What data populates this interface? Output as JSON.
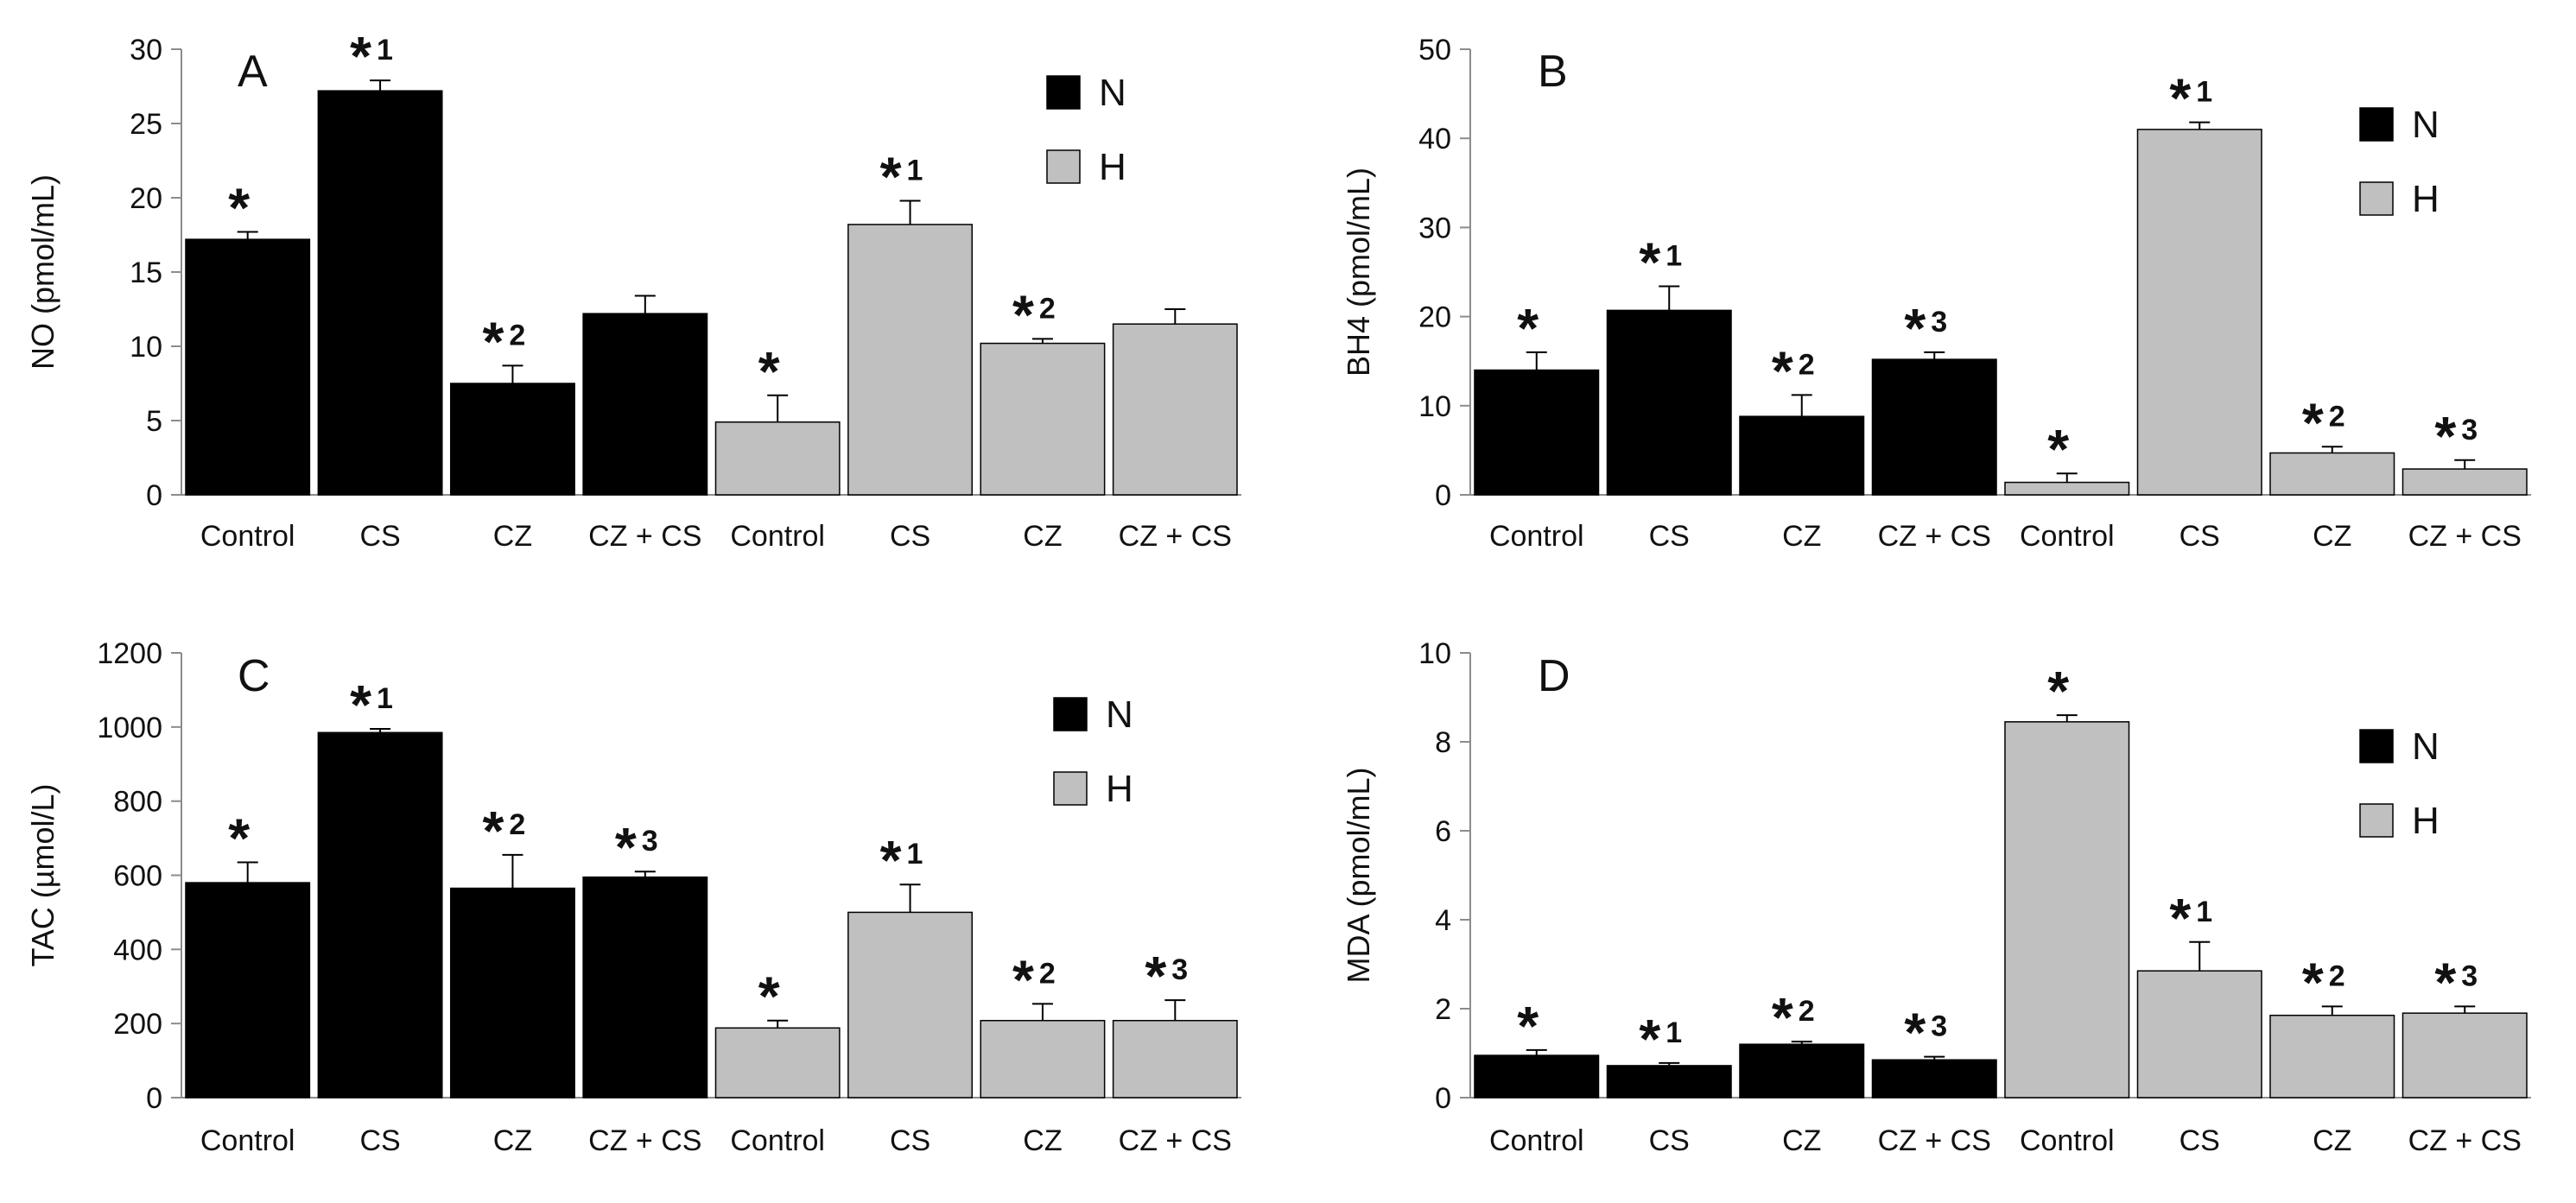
{
  "colors": {
    "N": "#000000",
    "H": "#c0c0c0",
    "axis": "#8c8c8c",
    "text": "#111111"
  },
  "legend": {
    "N": "N",
    "H": "H"
  },
  "chart_data": [
    {
      "type": "bar",
      "panel": "A",
      "ylabel": "NO (pmol/mL)",
      "ylim": [
        0,
        30
      ],
      "yticks": [
        0,
        5,
        10,
        15,
        20,
        25,
        30
      ],
      "categories": [
        "Control",
        "CS",
        "CZ",
        "CZ + CS"
      ],
      "series": [
        {
          "name": "N",
          "values": [
            17.2,
            27.2,
            7.5,
            12.2
          ],
          "errors": [
            0.5,
            0.7,
            1.2,
            1.2
          ],
          "marks": [
            "*",
            "*1",
            "*2",
            ""
          ]
        },
        {
          "name": "H",
          "values": [
            4.9,
            18.2,
            10.2,
            11.5
          ],
          "errors": [
            1.8,
            1.6,
            0.3,
            1.0
          ],
          "marks": [
            "*",
            "*1",
            "*2",
            ""
          ]
        }
      ]
    },
    {
      "type": "bar",
      "panel": "B",
      "ylabel": "BH4 (pmol/mL)",
      "ylim": [
        0,
        50
      ],
      "yticks": [
        0,
        10,
        20,
        30,
        40,
        50
      ],
      "categories": [
        "Control",
        "CS",
        "CZ",
        "CZ + CS"
      ],
      "series": [
        {
          "name": "N",
          "values": [
            14.0,
            20.7,
            8.8,
            15.2
          ],
          "errors": [
            2.0,
            2.7,
            2.4,
            0.8
          ],
          "marks": [
            "*",
            "*1",
            "*2",
            "*3"
          ]
        },
        {
          "name": "H",
          "values": [
            1.4,
            41.0,
            4.7,
            2.9
          ],
          "errors": [
            1.0,
            0.8,
            0.7,
            1.0
          ],
          "marks": [
            "*",
            "*1",
            "*2",
            "*3"
          ]
        }
      ]
    },
    {
      "type": "bar",
      "panel": "C",
      "ylabel": "TAC (µmol/L)",
      "ylim": [
        0,
        1200
      ],
      "yticks": [
        0,
        200,
        400,
        600,
        800,
        1000,
        1200
      ],
      "categories": [
        "Control",
        "CS",
        "CZ",
        "CZ + CS"
      ],
      "series": [
        {
          "name": "N",
          "values": [
            580,
            985,
            565,
            595
          ],
          "errors": [
            55,
            10,
            90,
            15
          ],
          "marks": [
            "*",
            "*1",
            "*2",
            "*3"
          ]
        },
        {
          "name": "H",
          "values": [
            188,
            500,
            208,
            208
          ],
          "errors": [
            20,
            75,
            45,
            55
          ],
          "marks": [
            "*",
            "*1",
            "*2",
            "*3"
          ]
        }
      ]
    },
    {
      "type": "bar",
      "panel": "D",
      "ylabel": "MDA (pmol/mL)",
      "ylim": [
        0,
        10
      ],
      "yticks": [
        0,
        2,
        4,
        6,
        8,
        10
      ],
      "categories": [
        "Control",
        "CS",
        "CZ",
        "CZ + CS"
      ],
      "series": [
        {
          "name": "N",
          "values": [
            0.95,
            0.72,
            1.2,
            0.85
          ],
          "errors": [
            0.12,
            0.06,
            0.06,
            0.07
          ],
          "marks": [
            "*",
            "*1",
            "*2",
            "*3"
          ]
        },
        {
          "name": "H",
          "values": [
            8.45,
            2.85,
            1.85,
            1.9
          ],
          "errors": [
            0.15,
            0.65,
            0.2,
            0.15
          ],
          "marks": [
            "*",
            "*1",
            "*2",
            "*3"
          ]
        }
      ]
    }
  ]
}
